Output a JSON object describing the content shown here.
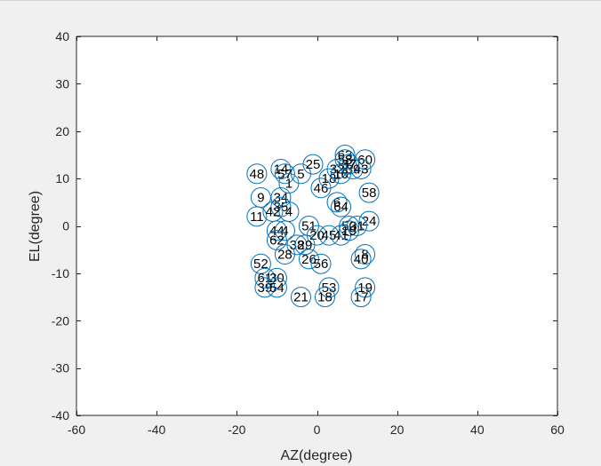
{
  "colors": {
    "figure_background": "#f0f0f0",
    "axes_background": "#ffffff",
    "axis_color": "#262626",
    "marker_color": "#0072bd",
    "label_color": "#000000"
  },
  "chart_data": {
    "type": "scatter",
    "title": "",
    "xlabel": "AZ(degree)",
    "ylabel": "EL(degree)",
    "xlim": [
      -60,
      60
    ],
    "ylim": [
      -40,
      40
    ],
    "xticks": [
      -60,
      -40,
      -20,
      0,
      20,
      40,
      60
    ],
    "yticks": [
      -40,
      -30,
      -20,
      -10,
      0,
      10,
      20,
      30,
      40
    ],
    "xtick_labels": [
      "-60",
      "-40",
      "-20",
      "0",
      "20",
      "40",
      "60"
    ],
    "ytick_labels": [
      "-40",
      "-30",
      "-20",
      "-10",
      "0",
      "10",
      "20",
      "30",
      "40"
    ],
    "grid": false,
    "marker": "open-circle",
    "points": [
      {
        "label": "48",
        "x": -15,
        "y": 11
      },
      {
        "label": "14",
        "x": -9,
        "y": 12
      },
      {
        "label": "57",
        "x": -8,
        "y": 11
      },
      {
        "label": "5",
        "x": -4,
        "y": 11
      },
      {
        "label": "1",
        "x": -7,
        "y": 9
      },
      {
        "label": "25",
        "x": -1,
        "y": 13
      },
      {
        "label": "46",
        "x": 1,
        "y": 8
      },
      {
        "label": "18",
        "x": 3,
        "y": 10
      },
      {
        "label": "63",
        "x": 7,
        "y": 15
      },
      {
        "label": "60",
        "x": 12,
        "y": 14
      },
      {
        "label": "58",
        "x": 7,
        "y": 14
      },
      {
        "label": "32",
        "x": 5,
        "y": 12
      },
      {
        "label": "39",
        "x": 9,
        "y": 12
      },
      {
        "label": "16",
        "x": 6,
        "y": 11
      },
      {
        "label": "43",
        "x": 11,
        "y": 12
      },
      {
        "label": "37",
        "x": 8,
        "y": 13
      },
      {
        "label": "58",
        "x": 13,
        "y": 7
      },
      {
        "label": "9",
        "x": -14,
        "y": 6
      },
      {
        "label": "34",
        "x": -9,
        "y": 6
      },
      {
        "label": "6",
        "x": 5,
        "y": 5
      },
      {
        "label": "64",
        "x": 6,
        "y": 4
      },
      {
        "label": "35",
        "x": -9,
        "y": 4
      },
      {
        "label": "11",
        "x": -15,
        "y": 2
      },
      {
        "label": "42",
        "x": -11,
        "y": 3
      },
      {
        "label": "4",
        "x": -7,
        "y": 3
      },
      {
        "label": "51",
        "x": -2,
        "y": 0
      },
      {
        "label": "24",
        "x": 13,
        "y": 1
      },
      {
        "label": "50",
        "x": 8,
        "y": 0
      },
      {
        "label": "31",
        "x": 10,
        "y": 0
      },
      {
        "label": "44",
        "x": -10,
        "y": -1
      },
      {
        "label": "4",
        "x": -8,
        "y": -1
      },
      {
        "label": "20",
        "x": 0,
        "y": -2
      },
      {
        "label": "45",
        "x": 3,
        "y": -2
      },
      {
        "label": "41",
        "x": 6,
        "y": -2
      },
      {
        "label": "19",
        "x": 8,
        "y": -1
      },
      {
        "label": "62",
        "x": -10,
        "y": -3
      },
      {
        "label": "38",
        "x": -5,
        "y": -4
      },
      {
        "label": "29",
        "x": -3,
        "y": -4
      },
      {
        "label": "28",
        "x": -8,
        "y": -6
      },
      {
        "label": "26",
        "x": -2,
        "y": -7
      },
      {
        "label": "56",
        "x": 1,
        "y": -8
      },
      {
        "label": "8",
        "x": 12,
        "y": -6
      },
      {
        "label": "40",
        "x": 11,
        "y": -7
      },
      {
        "label": "52",
        "x": -14,
        "y": -8
      },
      {
        "label": "61",
        "x": -13,
        "y": -11
      },
      {
        "label": "30",
        "x": -10,
        "y": -11
      },
      {
        "label": "39",
        "x": -13,
        "y": -13
      },
      {
        "label": "54",
        "x": -10,
        "y": -13
      },
      {
        "label": "53",
        "x": 3,
        "y": -13
      },
      {
        "label": "19",
        "x": 12,
        "y": -13
      },
      {
        "label": "21",
        "x": -4,
        "y": -15
      },
      {
        "label": "18",
        "x": 2,
        "y": -15
      },
      {
        "label": "17",
        "x": 11,
        "y": -15
      }
    ]
  }
}
